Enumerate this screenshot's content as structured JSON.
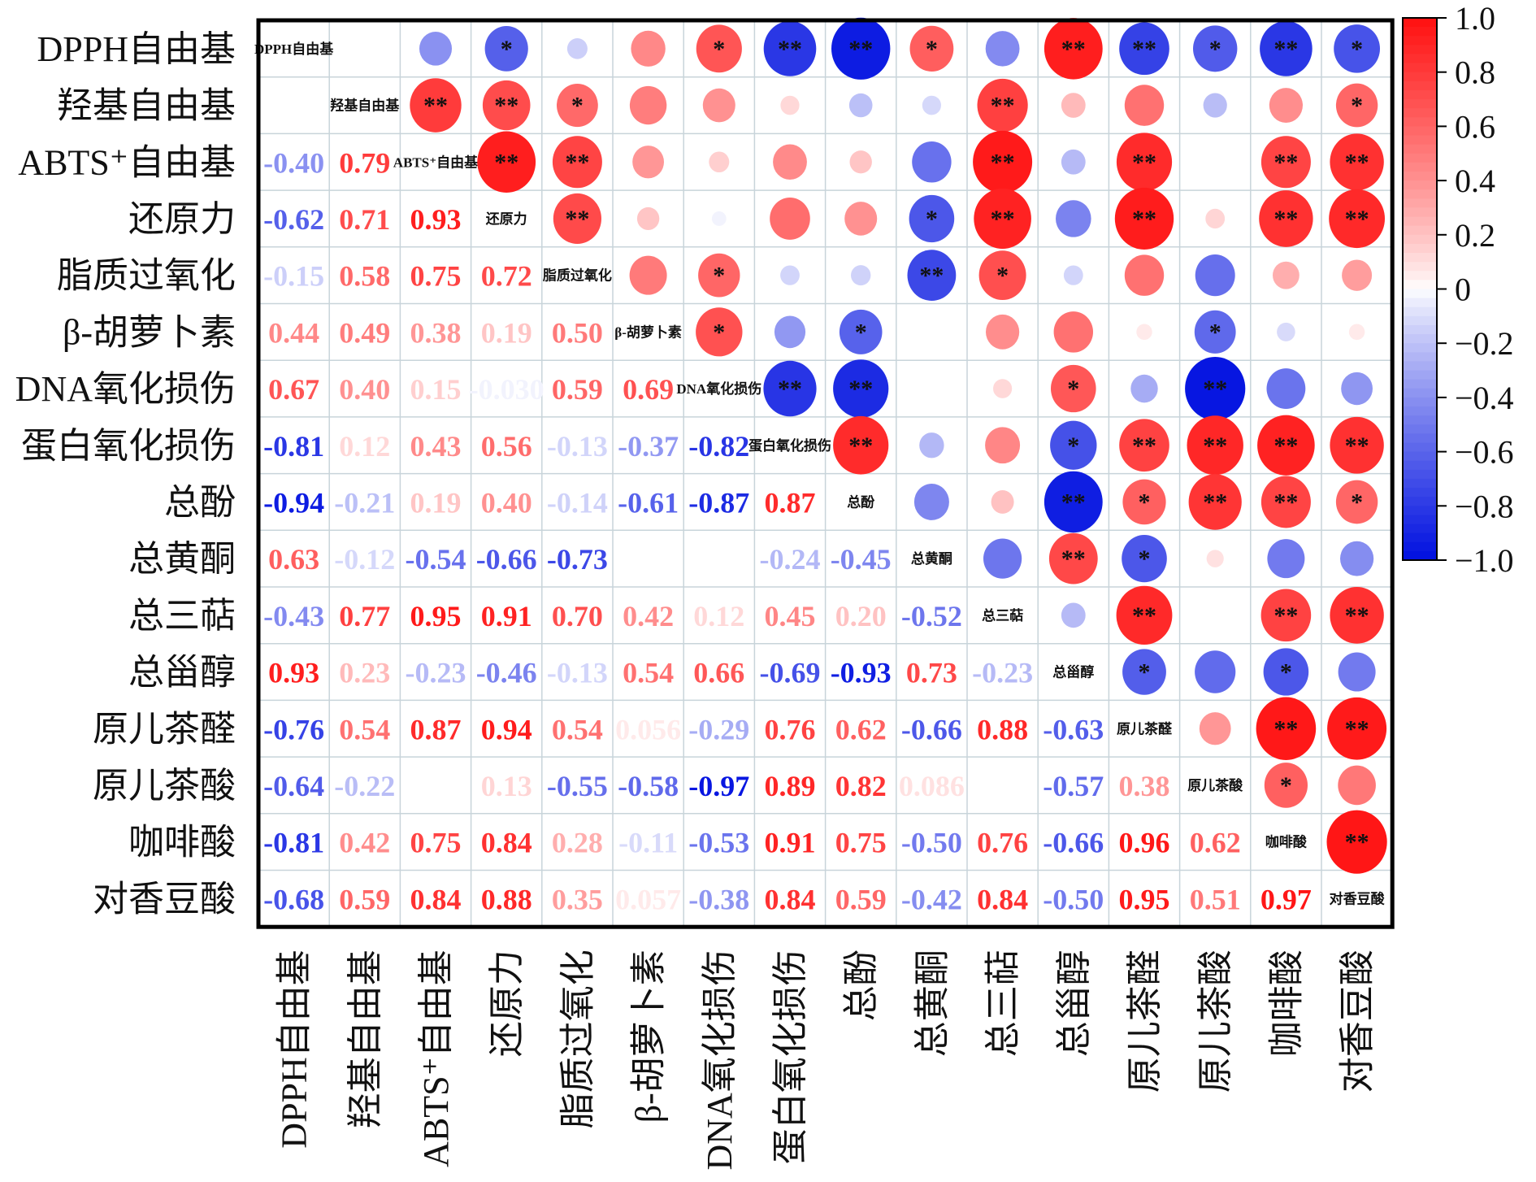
{
  "chart_data": {
    "type": "heatmap",
    "subtype": "correlation-matrix",
    "title": "",
    "variables": [
      "DPPH自由基",
      "羟基自由基",
      "ABTS⁺自由基",
      "还原力",
      "脂质过氧化",
      "β-胡萝卜素",
      "DNA氧化损伤",
      "蛋白氧化损伤",
      "总酚",
      "总黄酮",
      "总三萜",
      "总甾醇",
      "原儿茶醛",
      "原儿茶酸",
      "咖啡酸",
      "对香豆酸"
    ],
    "lower_triangle_values": [
      [],
      [
        null
      ],
      [
        "-0.40",
        "0.79"
      ],
      [
        "-0.62",
        "0.71",
        "0.93"
      ],
      [
        "-0.15",
        "0.58",
        "0.75",
        "0.72"
      ],
      [
        "0.44",
        "0.49",
        "0.38",
        "0.19",
        "0.50"
      ],
      [
        "0.67",
        "0.40",
        "0.15",
        "-0.030",
        "0.59",
        "0.69"
      ],
      [
        "-0.81",
        "0.12",
        "0.43",
        "0.56",
        "-0.13",
        "-0.37",
        "-0.82"
      ],
      [
        "-0.94",
        "-0.21",
        "0.19",
        "0.40",
        "-0.14",
        "-0.61",
        "-0.87",
        "0.87"
      ],
      [
        "0.63",
        "-0.12",
        "-0.54",
        "-0.66",
        "-0.73",
        null,
        null,
        "-0.24",
        "-0.45"
      ],
      [
        "-0.43",
        "0.77",
        "0.95",
        "0.91",
        "0.70",
        "0.42",
        "0.12",
        "0.45",
        "0.20",
        "-0.52"
      ],
      [
        "0.93",
        "0.23",
        "-0.23",
        "-0.46",
        "-0.13",
        "0.54",
        "0.66",
        "-0.69",
        "-0.93",
        "0.73",
        "-0.23"
      ],
      [
        "-0.76",
        "0.54",
        "0.87",
        "0.94",
        "0.54",
        "0.056",
        "-0.29",
        "0.76",
        "0.62",
        "-0.66",
        "0.88",
        "-0.63"
      ],
      [
        "-0.64",
        "-0.22",
        null,
        "0.13",
        "-0.55",
        "-0.58",
        "-0.97",
        "0.89",
        "0.82",
        "0.086",
        null,
        "-0.57",
        "0.38"
      ],
      [
        "-0.81",
        "0.42",
        "0.75",
        "0.84",
        "0.28",
        "-0.11",
        "-0.53",
        "0.91",
        "0.75",
        "-0.50",
        "0.76",
        "-0.66",
        "0.96",
        "0.62"
      ],
      [
        "-0.68",
        "0.59",
        "0.84",
        "0.88",
        "0.35",
        "0.057",
        "-0.38",
        "0.84",
        "0.59",
        "-0.42",
        "0.84",
        "-0.50",
        "0.95",
        "0.51",
        "0.97"
      ]
    ],
    "upper_triangle_significance": [
      [
        "",
        "",
        "",
        "*",
        "",
        "",
        "*",
        "**",
        "**",
        "*",
        "",
        "**",
        "**",
        "*",
        "**",
        "*"
      ],
      [
        "",
        "",
        "**",
        "**",
        "*",
        "",
        "",
        "",
        "",
        "",
        "**",
        "",
        "",
        "",
        "",
        "*"
      ],
      [
        "",
        "",
        "",
        "**",
        "**",
        "",
        "",
        "",
        "",
        "",
        "**",
        "",
        "**",
        "",
        "**",
        "**"
      ],
      [
        "",
        "",
        "",
        "",
        "**",
        "",
        "",
        "",
        "",
        "*",
        "**",
        "",
        "**",
        "",
        "**",
        "**"
      ],
      [
        "",
        "",
        "",
        "",
        "",
        "",
        "*",
        "",
        "",
        "**",
        "*",
        "",
        "",
        "",
        "",
        ""
      ],
      [
        "",
        "",
        "",
        "",
        "",
        "",
        "*",
        "",
        "*",
        "",
        "",
        "",
        "",
        "*",
        "",
        ""
      ],
      [
        "",
        "",
        "",
        "",
        "",
        "",
        "",
        "**",
        "**",
        "",
        "",
        "*",
        "",
        "**",
        "",
        ""
      ],
      [
        "",
        "",
        "",
        "",
        "",
        "",
        "",
        "",
        "**",
        "",
        "",
        "*",
        "**",
        "**",
        "**",
        "**"
      ],
      [
        "",
        "",
        "",
        "",
        "",
        "",
        "",
        "",
        "",
        "",
        "",
        "**",
        "*",
        "**",
        "**",
        "*"
      ],
      [
        "",
        "",
        "",
        "",
        "",
        "",
        "",
        "",
        "",
        "",
        "",
        "**",
        "*",
        "",
        "",
        ""
      ],
      [
        "",
        "",
        "",
        "",
        "",
        "",
        "",
        "",
        "",
        "",
        "",
        "",
        "**",
        "",
        "**",
        "**"
      ],
      [
        "",
        "",
        "",
        "",
        "",
        "",
        "",
        "",
        "",
        "",
        "",
        "",
        "*",
        "",
        "*",
        ""
      ],
      [
        "",
        "",
        "",
        "",
        "",
        "",
        "",
        "",
        "",
        "",
        "",
        "",
        "",
        "",
        "**",
        "**"
      ],
      [
        "",
        "",
        "",
        "",
        "",
        "",
        "",
        "",
        "",
        "",
        "",
        "",
        "",
        "",
        "*",
        ""
      ],
      [
        "",
        "",
        "",
        "",
        "",
        "",
        "",
        "",
        "",
        "",
        "",
        "",
        "",
        "",
        "",
        "**"
      ],
      [
        "",
        "",
        "",
        "",
        "",
        "",
        "",
        "",
        "",
        "",
        "",
        "",
        "",
        "",
        "",
        ""
      ]
    ],
    "upper_triangle_notes": "Upper triangle shows circles sized and colored by |r| (mirror of lower triangle), with significance stars (* p<0.05, ** p<0.01).",
    "colorbar": {
      "range": [
        -1.0,
        1.0
      ],
      "ticks": [
        "1.0",
        "0.8",
        "0.6",
        "0.4",
        "0.2",
        "0",
        "−0.2",
        "−0.4",
        "−0.6",
        "−0.8",
        "−1.0"
      ],
      "low_color": "#0010e0",
      "mid_color": "#ffffff",
      "high_color": "#ff1010"
    },
    "grid": true,
    "legend": "right"
  }
}
